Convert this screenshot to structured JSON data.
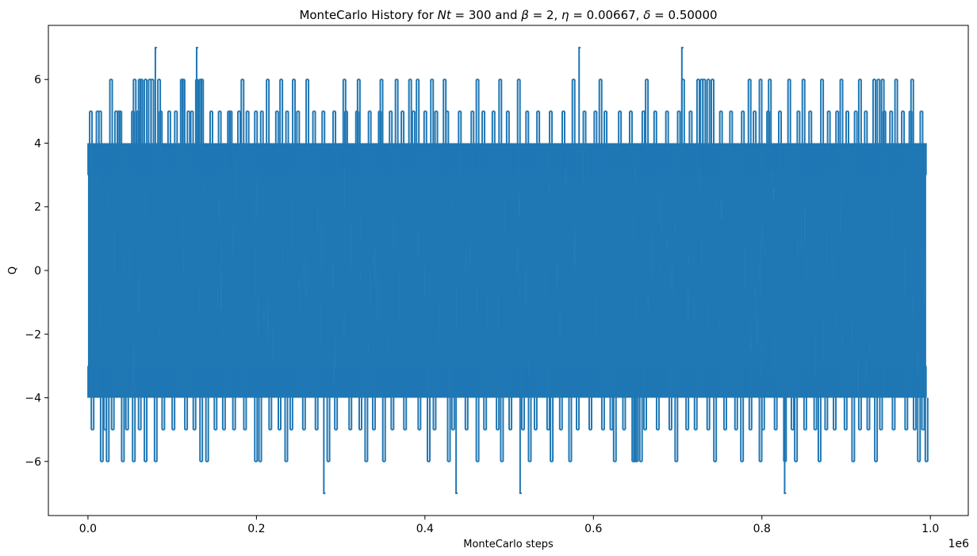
{
  "chart_data": {
    "type": "line",
    "title": "MonteCarlo History for Nt = 300 and  β = 2, η = 0.00667, δ = 0.50000",
    "title_parts": {
      "prefix": "MonteCarlo History for ",
      "nt_symbol": "Nt",
      "nt_value": " = 300 and  ",
      "beta_symbol": "β",
      "beta_value": " = 2, ",
      "eta_symbol": "η",
      "eta_value": " = 0.00667, ",
      "delta_symbol": "δ",
      "delta_value": " = 0.50000"
    },
    "xlabel": "MonteCarlo steps",
    "ylabel": "Q",
    "x_offset_text": "1e6",
    "xlim": [
      -0.047,
      1.045
    ],
    "ylim": [
      -7.7,
      7.7
    ],
    "xticks": [
      0.0,
      0.2,
      0.4,
      0.6,
      0.8,
      1.0
    ],
    "xtick_labels": [
      "0.0",
      "0.2",
      "0.4",
      "0.6",
      "0.8",
      "1.0"
    ],
    "yticks": [
      -6,
      -4,
      -2,
      0,
      2,
      4,
      6
    ],
    "ytick_labels": [
      "−6",
      "−4",
      "−2",
      "0",
      "2",
      "4",
      "6"
    ],
    "grid": false,
    "series": [
      {
        "color": "#1f77b4",
        "x_range": [
          0.0,
          0.995
        ],
        "dense_band": [
          -4,
          4
        ],
        "extremes": [
          {
            "x": 0.08,
            "y": 7
          },
          {
            "x": 0.129,
            "y": 7
          },
          {
            "x": 0.583,
            "y": 7
          },
          {
            "x": 0.705,
            "y": 7
          },
          {
            "x": 0.28,
            "y": -7
          },
          {
            "x": 0.437,
            "y": -7
          },
          {
            "x": 0.513,
            "y": -7
          },
          {
            "x": 0.827,
            "y": -7
          }
        ],
        "spikes_6": [
          0.026,
          0.054,
          0.06,
          0.062,
          0.067,
          0.072,
          0.075,
          0.083,
          0.11,
          0.112,
          0.128,
          0.132,
          0.134,
          0.182,
          0.212,
          0.228,
          0.243,
          0.259,
          0.303,
          0.32,
          0.347,
          0.365,
          0.381,
          0.39,
          0.407,
          0.422,
          0.461,
          0.488,
          0.51,
          0.575,
          0.607,
          0.662,
          0.705,
          0.723,
          0.727,
          0.73,
          0.735,
          0.74,
          0.784,
          0.797,
          0.808,
          0.831,
          0.848,
          0.87,
          0.893,
          0.915,
          0.932,
          0.937,
          0.942,
          0.958,
          0.977
        ],
        "spikes_neg6": [
          0.015,
          0.022,
          0.04,
          0.053,
          0.067,
          0.079,
          0.133,
          0.14,
          0.198,
          0.203,
          0.234,
          0.284,
          0.329,
          0.35,
          0.403,
          0.427,
          0.461,
          0.49,
          0.523,
          0.549,
          0.571,
          0.624,
          0.646,
          0.648,
          0.65,
          0.655,
          0.697,
          0.743,
          0.775,
          0.797,
          0.826,
          0.839,
          0.867,
          0.907,
          0.934,
          0.985,
          0.994
        ],
        "spikes_5": [
          0.002,
          0.01,
          0.013,
          0.032,
          0.035,
          0.037,
          0.052,
          0.058,
          0.085,
          0.095,
          0.103,
          0.118,
          0.122,
          0.145,
          0.155,
          0.166,
          0.168,
          0.178,
          0.188,
          0.198,
          0.205,
          0.223,
          0.235,
          0.248,
          0.267,
          0.278,
          0.291,
          0.305,
          0.318,
          0.333,
          0.345,
          0.358,
          0.372,
          0.385,
          0.399,
          0.412,
          0.425,
          0.44,
          0.455,
          0.468,
          0.48,
          0.497,
          0.52,
          0.533,
          0.548,
          0.563,
          0.588,
          0.601,
          0.613,
          0.63,
          0.643,
          0.658,
          0.672,
          0.686,
          0.7,
          0.714,
          0.75,
          0.762,
          0.776,
          0.79,
          0.806,
          0.82,
          0.842,
          0.856,
          0.878,
          0.888,
          0.9,
          0.91,
          0.922,
          0.944,
          0.952,
          0.966,
          0.975,
          0.988
        ],
        "spikes_neg5": [
          0.004,
          0.019,
          0.028,
          0.045,
          0.06,
          0.088,
          0.1,
          0.115,
          0.125,
          0.15,
          0.16,
          0.172,
          0.185,
          0.215,
          0.226,
          0.24,
          0.255,
          0.27,
          0.293,
          0.31,
          0.322,
          0.338,
          0.36,
          0.375,
          0.392,
          0.41,
          0.432,
          0.448,
          0.47,
          0.485,
          0.5,
          0.515,
          0.53,
          0.545,
          0.56,
          0.58,
          0.595,
          0.61,
          0.62,
          0.635,
          0.66,
          0.675,
          0.69,
          0.71,
          0.72,
          0.735,
          0.755,
          0.768,
          0.785,
          0.8,
          0.815,
          0.835,
          0.85,
          0.862,
          0.875,
          0.885,
          0.898,
          0.915,
          0.925,
          0.94,
          0.955,
          0.97,
          0.98,
          0.99
        ]
      }
    ]
  }
}
